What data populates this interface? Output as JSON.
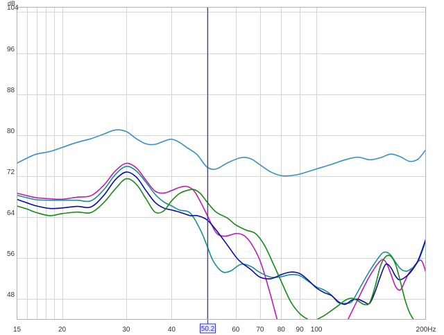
{
  "chart_data": {
    "type": "line",
    "title": "",
    "xlabel": "",
    "ylabel": "",
    "x_scale": "log",
    "xlim": [
      15,
      200
    ],
    "ylim": [
      44,
      105
    ],
    "y_unit": "dB",
    "x_unit": "Hz",
    "y_ticks": [
      48,
      56,
      64,
      72,
      80,
      88,
      96,
      104
    ],
    "x_ticks": [
      15,
      20,
      30,
      40,
      60,
      70,
      80,
      90,
      100,
      200
    ],
    "x_tick_labels": [
      "15",
      "20",
      "30",
      "40",
      "60",
      "70",
      "80",
      "90",
      "100",
      "200Hz"
    ],
    "grid": true,
    "cursor": {
      "x": 50.2,
      "label": "50.2"
    },
    "colors": {
      "series_top": "#3a8fc2",
      "series_magenta": "#c01ab6",
      "series_teal": "#178f8f",
      "series_navy": "#0a0aa6",
      "series_green": "#138a13",
      "cursor": "#3434d6",
      "grid": "#d4d4d4"
    },
    "series": [
      {
        "color_key": "series_top",
        "points": [
          [
            15,
            74.5
          ],
          [
            16,
            75.5
          ],
          [
            17,
            76.3
          ],
          [
            18.5,
            76.8
          ],
          [
            20,
            77.6
          ],
          [
            22,
            78.6
          ],
          [
            24,
            79.3
          ],
          [
            26,
            80.2
          ],
          [
            28,
            81.0
          ],
          [
            30,
            80.7
          ],
          [
            32,
            79.3
          ],
          [
            34,
            78.3
          ],
          [
            36,
            78.2
          ],
          [
            38,
            78.8
          ],
          [
            40,
            79.2
          ],
          [
            42,
            78.6
          ],
          [
            44,
            77.6
          ],
          [
            47,
            76.2
          ],
          [
            50,
            73.8
          ],
          [
            53,
            73.4
          ],
          [
            57,
            74.6
          ],
          [
            62,
            75.6
          ],
          [
            66,
            75.4
          ],
          [
            70,
            74.2
          ],
          [
            75,
            72.8
          ],
          [
            80,
            72.1
          ],
          [
            85,
            72.1
          ],
          [
            90,
            72.4
          ],
          [
            100,
            73.4
          ],
          [
            110,
            74.3
          ],
          [
            120,
            75.2
          ],
          [
            130,
            75.7
          ],
          [
            140,
            75.2
          ],
          [
            150,
            75.6
          ],
          [
            160,
            76.3
          ],
          [
            170,
            75.8
          ],
          [
            180,
            74.9
          ],
          [
            190,
            75.3
          ],
          [
            200,
            77.2
          ]
        ]
      },
      {
        "color_key": "series_magenta",
        "points": [
          [
            15,
            68.7
          ],
          [
            16,
            68.2
          ],
          [
            17,
            67.8
          ],
          [
            18.5,
            67.6
          ],
          [
            20,
            67.5
          ],
          [
            22,
            67.9
          ],
          [
            24,
            68.2
          ],
          [
            26,
            70.2
          ],
          [
            28,
            73.0
          ],
          [
            30,
            74.5
          ],
          [
            32,
            73.6
          ],
          [
            34,
            71.2
          ],
          [
            36,
            69.1
          ],
          [
            38,
            68.7
          ],
          [
            40,
            69.2
          ],
          [
            42,
            69.8
          ],
          [
            44,
            70.0
          ],
          [
            46,
            69.2
          ],
          [
            48,
            67.0
          ],
          [
            50,
            64.5
          ],
          [
            53,
            61.0
          ],
          [
            56,
            60.3
          ],
          [
            60,
            60.8
          ],
          [
            63,
            60.5
          ],
          [
            66,
            59.0
          ],
          [
            70,
            55.5
          ],
          [
            74,
            50.0
          ],
          [
            78,
            44.0
          ]
        ]
      },
      {
        "color_key": "series_magenta",
        "points": [
          [
            122,
            44.0
          ],
          [
            130,
            48.0
          ],
          [
            140,
            52.5
          ],
          [
            150,
            55.5
          ],
          [
            155,
            55.3
          ],
          [
            160,
            53.0
          ],
          [
            165,
            50.5
          ],
          [
            170,
            49.8
          ],
          [
            175,
            51.5
          ],
          [
            180,
            53.2
          ],
          [
            190,
            55.3
          ],
          [
            195,
            55.4
          ],
          [
            200,
            53.2
          ]
        ]
      },
      {
        "color_key": "series_teal",
        "points": [
          [
            15,
            68.3
          ],
          [
            16,
            67.8
          ],
          [
            17,
            67.4
          ],
          [
            18.5,
            67.3
          ],
          [
            20,
            67.3
          ],
          [
            22,
            67.3
          ],
          [
            24,
            67.2
          ],
          [
            26,
            69.3
          ],
          [
            28,
            72.3
          ],
          [
            30,
            73.9
          ],
          [
            32,
            73.0
          ],
          [
            34,
            70.8
          ],
          [
            36,
            68.5
          ],
          [
            38,
            67.0
          ],
          [
            40,
            66.2
          ],
          [
            42,
            65.4
          ],
          [
            45,
            64.8
          ],
          [
            48,
            61.5
          ],
          [
            50,
            58.5
          ],
          [
            52,
            55.5
          ],
          [
            55,
            53.4
          ],
          [
            58,
            53.5
          ],
          [
            62,
            54.8
          ],
          [
            66,
            54.4
          ],
          [
            70,
            53.2
          ],
          [
            75,
            52.3
          ],
          [
            80,
            52.4
          ],
          [
            85,
            52.8
          ],
          [
            90,
            52.6
          ],
          [
            95,
            51.5
          ],
          [
            100,
            50.4
          ],
          [
            105,
            49.8
          ],
          [
            110,
            48.8
          ],
          [
            115,
            47.3
          ],
          [
            120,
            47.2
          ],
          [
            125,
            47.5
          ],
          [
            130,
            49.5
          ],
          [
            140,
            53.5
          ],
          [
            150,
            56.6
          ],
          [
            155,
            57.2
          ],
          [
            160,
            56.6
          ],
          [
            165,
            55.2
          ],
          [
            170,
            54.0
          ],
          [
            175,
            53.5
          ],
          [
            180,
            53.7
          ],
          [
            190,
            55.3
          ],
          [
            200,
            59.5
          ]
        ]
      },
      {
        "color_key": "series_navy",
        "points": [
          [
            15,
            67.5
          ],
          [
            16,
            66.8
          ],
          [
            17,
            66.2
          ],
          [
            18.5,
            65.7
          ],
          [
            20,
            65.8
          ],
          [
            22,
            66.1
          ],
          [
            24,
            66.0
          ],
          [
            26,
            68.2
          ],
          [
            28,
            71.3
          ],
          [
            30,
            72.8
          ],
          [
            32,
            71.8
          ],
          [
            34,
            69.2
          ],
          [
            36,
            66.9
          ],
          [
            38,
            65.8
          ],
          [
            40,
            65.4
          ],
          [
            42,
            65.0
          ],
          [
            45,
            64.3
          ],
          [
            47,
            64.3
          ],
          [
            50,
            63.5
          ],
          [
            53,
            61.5
          ],
          [
            57,
            58.5
          ],
          [
            61,
            55.7
          ],
          [
            66,
            53.8
          ],
          [
            70,
            52.3
          ],
          [
            75,
            52.0
          ],
          [
            80,
            52.8
          ],
          [
            85,
            53.3
          ],
          [
            90,
            53.0
          ],
          [
            95,
            51.7
          ],
          [
            100,
            50.2
          ],
          [
            105,
            49.3
          ],
          [
            110,
            48.7
          ],
          [
            115,
            47.5
          ],
          [
            120,
            47.0
          ],
          [
            125,
            47.8
          ],
          [
            130,
            48.0
          ],
          [
            135,
            47.5
          ],
          [
            140,
            47.2
          ],
          [
            145,
            49.5
          ],
          [
            150,
            52.5
          ],
          [
            155,
            54.8
          ],
          [
            160,
            54.2
          ],
          [
            165,
            52.5
          ],
          [
            170,
            51.8
          ],
          [
            180,
            53.0
          ],
          [
            190,
            55.5
          ],
          [
            200,
            59.8
          ]
        ]
      },
      {
        "color_key": "series_green",
        "points": [
          [
            15,
            66.2
          ],
          [
            16,
            65.6
          ],
          [
            17,
            64.9
          ],
          [
            18.5,
            64.3
          ],
          [
            20,
            64.7
          ],
          [
            22,
            65.0
          ],
          [
            24,
            64.9
          ],
          [
            26,
            66.8
          ],
          [
            28,
            69.5
          ],
          [
            30,
            71.5
          ],
          [
            32,
            70.4
          ],
          [
            34,
            67.6
          ],
          [
            36,
            65.0
          ],
          [
            38,
            65.2
          ],
          [
            40,
            67.2
          ],
          [
            42,
            68.6
          ],
          [
            44,
            69.2
          ],
          [
            46,
            69.4
          ],
          [
            48,
            68.6
          ],
          [
            50,
            67.0
          ],
          [
            53,
            65.0
          ],
          [
            57,
            63.8
          ],
          [
            60,
            62.5
          ],
          [
            64,
            61.5
          ],
          [
            68,
            60.8
          ],
          [
            72,
            58.5
          ],
          [
            76,
            55.0
          ],
          [
            80,
            51.5
          ],
          [
            85,
            47.5
          ],
          [
            90,
            45.2
          ],
          [
            95,
            44.0
          ]
        ]
      },
      {
        "color_key": "series_green",
        "points": [
          [
            100,
            44.0
          ],
          [
            105,
            44.8
          ],
          [
            110,
            45.8
          ],
          [
            115,
            46.8
          ],
          [
            120,
            47.8
          ],
          [
            125,
            48.2
          ],
          [
            130,
            47.7
          ],
          [
            135,
            47.0
          ],
          [
            140,
            47.3
          ],
          [
            145,
            50.5
          ],
          [
            150,
            54.5
          ],
          [
            155,
            56.3
          ],
          [
            160,
            56.4
          ],
          [
            165,
            54.8
          ],
          [
            170,
            51.5
          ],
          [
            175,
            48.0
          ],
          [
            180,
            45.5
          ],
          [
            185,
            44.0
          ]
        ]
      }
    ]
  }
}
